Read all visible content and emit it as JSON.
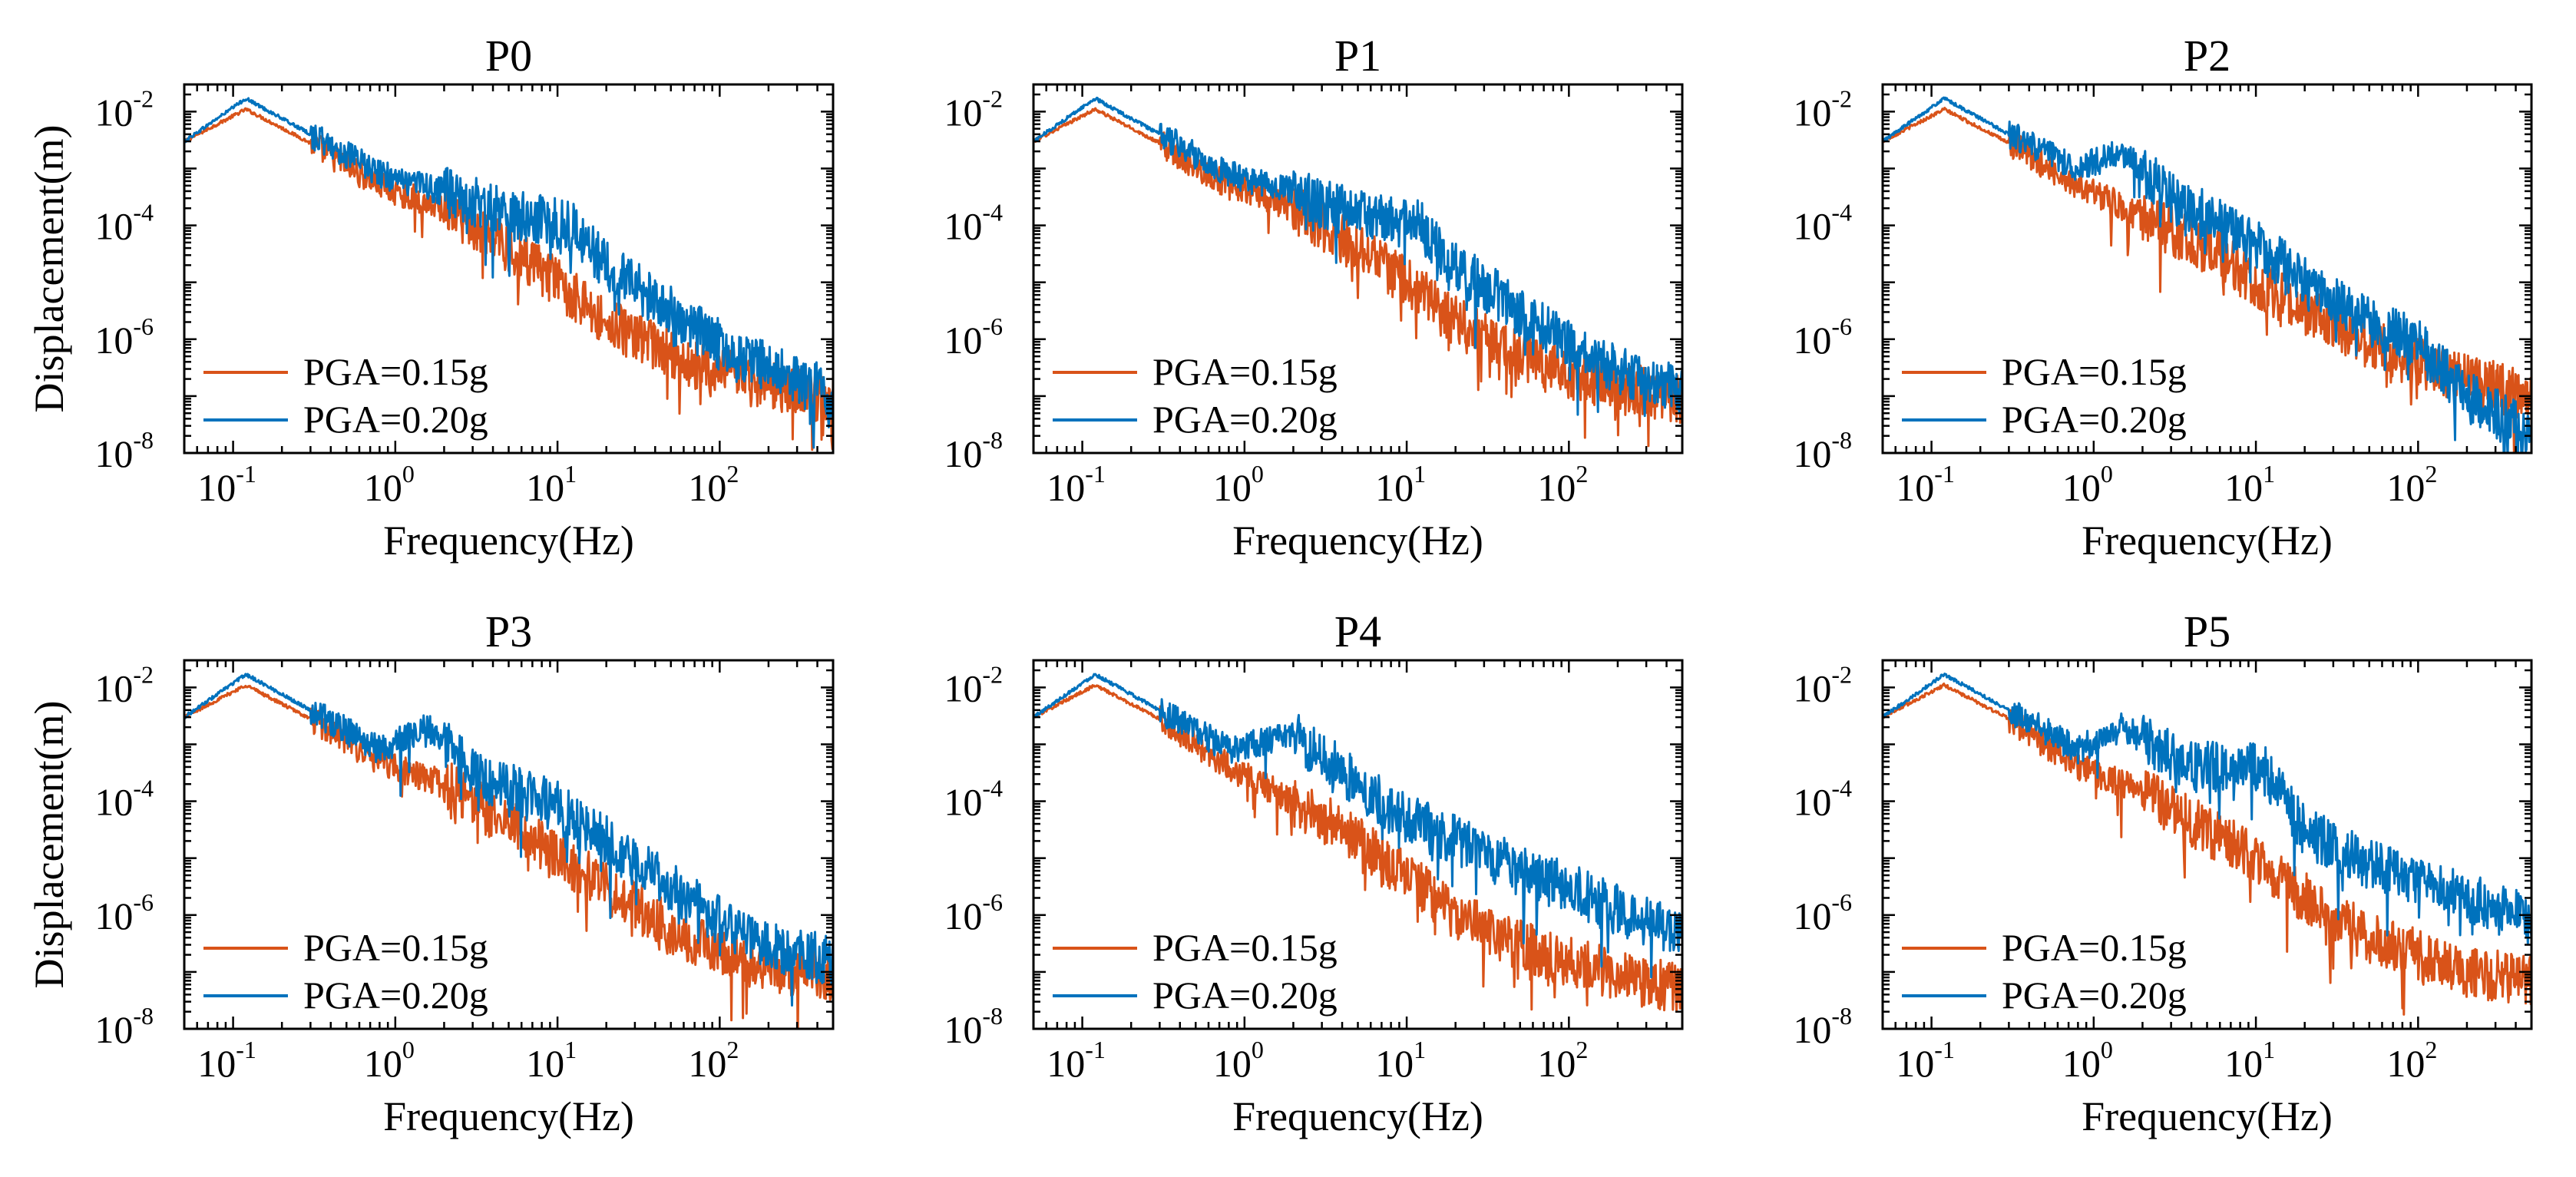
{
  "chart_data": [
    {
      "type": "line",
      "title": "P0",
      "xlabel": "Frequency(Hz)",
      "ylabel": "Displacement(m)",
      "xscale": "log",
      "yscale": "log",
      "xlim": [
        0.05,
        500
      ],
      "ylim": [
        1e-08,
        0.03
      ],
      "legend": "bottom-left",
      "xticks": [
        {
          "base": "10",
          "exp": "-1"
        },
        {
          "base": "10",
          "exp": "0"
        },
        {
          "base": "10",
          "exp": "1"
        },
        {
          "base": "10",
          "exp": "2"
        }
      ],
      "yticks": [
        {
          "base": "10",
          "exp": "-2"
        },
        {
          "base": "10",
          "exp": "-4"
        },
        {
          "base": "10",
          "exp": "-6"
        },
        {
          "base": "10",
          "exp": "-8"
        }
      ],
      "series": [
        {
          "name": "PGA=0.15g",
          "color": "#D95319",
          "profile": [
            [
              0.05,
              0.003
            ],
            [
              0.12,
              0.011
            ],
            [
              0.3,
              0.0028
            ],
            [
              0.8,
              0.0005
            ],
            [
              2,
              0.0002
            ],
            [
              5,
              4e-05
            ],
            [
              10,
              1e-05
            ],
            [
              20,
              2e-06
            ],
            [
              50,
              5e-07
            ],
            [
              100,
              2.5e-07
            ],
            [
              200,
              1.5e-07
            ],
            [
              500,
              9e-08
            ]
          ]
        },
        {
          "name": "PGA=0.20g",
          "color": "#0072BD",
          "profile": [
            [
              0.05,
              0.003
            ],
            [
              0.12,
              0.017
            ],
            [
              0.3,
              0.004
            ],
            [
              0.8,
              0.0008
            ],
            [
              2,
              0.0004
            ],
            [
              5,
              0.00015
            ],
            [
              12,
              0.0001
            ],
            [
              20,
              2e-05
            ],
            [
              50,
              3e-06
            ],
            [
              100,
              8e-07
            ],
            [
              200,
              3e-07
            ],
            [
              500,
              1.2e-07
            ]
          ]
        }
      ]
    },
    {
      "type": "line",
      "title": "P1",
      "xlabel": "Frequency(Hz)",
      "ylabel": "",
      "xscale": "log",
      "yscale": "log",
      "xlim": [
        0.05,
        500
      ],
      "ylim": [
        1e-08,
        0.03
      ],
      "legend": "bottom-left",
      "xticks": [
        {
          "base": "10",
          "exp": "-1"
        },
        {
          "base": "10",
          "exp": "0"
        },
        {
          "base": "10",
          "exp": "1"
        },
        {
          "base": "10",
          "exp": "2"
        }
      ],
      "yticks": [
        {
          "base": "10",
          "exp": "-2"
        },
        {
          "base": "10",
          "exp": "-4"
        },
        {
          "base": "10",
          "exp": "-6"
        },
        {
          "base": "10",
          "exp": "-8"
        }
      ],
      "series": [
        {
          "name": "PGA=0.15g",
          "color": "#D95319",
          "profile": [
            [
              0.05,
              0.003
            ],
            [
              0.12,
              0.011
            ],
            [
              0.3,
              0.0028
            ],
            [
              0.8,
              0.0005
            ],
            [
              2,
              0.0002
            ],
            [
              5,
              4e-05
            ],
            [
              10,
              1e-05
            ],
            [
              20,
              2e-06
            ],
            [
              50,
              5e-07
            ],
            [
              100,
              2.5e-07
            ],
            [
              200,
              1.5e-07
            ],
            [
              500,
              9e-08
            ]
          ]
        },
        {
          "name": "PGA=0.20g",
          "color": "#0072BD",
          "profile": [
            [
              0.05,
              0.003
            ],
            [
              0.12,
              0.017
            ],
            [
              0.3,
              0.004
            ],
            [
              0.8,
              0.0008
            ],
            [
              2,
              0.0004
            ],
            [
              5,
              0.00015
            ],
            [
              12,
              0.0001
            ],
            [
              20,
              2e-05
            ],
            [
              50,
              3e-06
            ],
            [
              100,
              8e-07
            ],
            [
              200,
              3e-07
            ],
            [
              500,
              1.2e-07
            ]
          ]
        }
      ]
    },
    {
      "type": "line",
      "title": "P2",
      "xlabel": "Frequency(Hz)",
      "ylabel": "",
      "xscale": "log",
      "yscale": "log",
      "xlim": [
        0.05,
        500
      ],
      "ylim": [
        1e-08,
        0.03
      ],
      "legend": "bottom-left",
      "xticks": [
        {
          "base": "10",
          "exp": "-1"
        },
        {
          "base": "10",
          "exp": "0"
        },
        {
          "base": "10",
          "exp": "1"
        },
        {
          "base": "10",
          "exp": "2"
        }
      ],
      "yticks": [
        {
          "base": "10",
          "exp": "-2"
        },
        {
          "base": "10",
          "exp": "-4"
        },
        {
          "base": "10",
          "exp": "-6"
        },
        {
          "base": "10",
          "exp": "-8"
        }
      ],
      "series": [
        {
          "name": "PGA=0.15g",
          "color": "#D95319",
          "profile": [
            [
              0.05,
              0.003
            ],
            [
              0.12,
              0.011
            ],
            [
              0.3,
              0.0028
            ],
            [
              0.8,
              0.0005
            ],
            [
              2,
              0.00015
            ],
            [
              5,
              4e-05
            ],
            [
              10,
              1e-05
            ],
            [
              20,
              3e-06
            ],
            [
              50,
              8e-07
            ],
            [
              100,
              4e-07
            ],
            [
              200,
              2e-07
            ],
            [
              500,
              1e-07
            ]
          ]
        },
        {
          "name": "PGA=0.20g",
          "color": "#0072BD",
          "profile": [
            [
              0.05,
              0.003
            ],
            [
              0.12,
              0.017
            ],
            [
              0.3,
              0.004
            ],
            [
              0.8,
              0.001
            ],
            [
              1.5,
              0.002
            ],
            [
              3,
              0.0003
            ],
            [
              10,
              5e-05
            ],
            [
              20,
              1e-05
            ],
            [
              50,
              2e-06
            ],
            [
              100,
              8e-07
            ],
            [
              200,
              1e-07
            ],
            [
              500,
              2e-08
            ]
          ]
        }
      ]
    },
    {
      "type": "line",
      "title": "P3",
      "xlabel": "Frequency(Hz)",
      "ylabel": "Displacement(m)",
      "xscale": "log",
      "yscale": "log",
      "xlim": [
        0.05,
        500
      ],
      "ylim": [
        1e-08,
        0.03
      ],
      "legend": "bottom-left",
      "xticks": [
        {
          "base": "10",
          "exp": "-1"
        },
        {
          "base": "10",
          "exp": "0"
        },
        {
          "base": "10",
          "exp": "1"
        },
        {
          "base": "10",
          "exp": "2"
        }
      ],
      "yticks": [
        {
          "base": "10",
          "exp": "-2"
        },
        {
          "base": "10",
          "exp": "-4"
        },
        {
          "base": "10",
          "exp": "-6"
        },
        {
          "base": "10",
          "exp": "-8"
        }
      ],
      "series": [
        {
          "name": "PGA=0.15g",
          "color": "#D95319",
          "profile": [
            [
              0.05,
              0.003
            ],
            [
              0.12,
              0.011
            ],
            [
              0.3,
              0.0028
            ],
            [
              0.8,
              0.0005
            ],
            [
              2,
              0.0002
            ],
            [
              5,
              4e-05
            ],
            [
              10,
              1e-05
            ],
            [
              20,
              3e-06
            ],
            [
              50,
              6e-07
            ],
            [
              100,
              2e-07
            ],
            [
              200,
              1.2e-07
            ],
            [
              500,
              9e-08
            ]
          ]
        },
        {
          "name": "PGA=0.20g",
          "color": "#0072BD",
          "profile": [
            [
              0.05,
              0.003
            ],
            [
              0.12,
              0.017
            ],
            [
              0.3,
              0.004
            ],
            [
              0.8,
              0.0008
            ],
            [
              1.6,
              0.002
            ],
            [
              3,
              0.0003
            ],
            [
              10,
              8e-05
            ],
            [
              20,
              2e-05
            ],
            [
              50,
              3e-06
            ],
            [
              100,
              8e-07
            ],
            [
              200,
              3e-07
            ],
            [
              500,
              1.5e-07
            ]
          ]
        }
      ]
    },
    {
      "type": "line",
      "title": "P4",
      "xlabel": "Frequency(Hz)",
      "ylabel": "",
      "xscale": "log",
      "yscale": "log",
      "xlim": [
        0.05,
        500
      ],
      "ylim": [
        1e-08,
        0.03
      ],
      "legend": "bottom-left",
      "xticks": [
        {
          "base": "10",
          "exp": "-1"
        },
        {
          "base": "10",
          "exp": "0"
        },
        {
          "base": "10",
          "exp": "1"
        },
        {
          "base": "10",
          "exp": "2"
        }
      ],
      "yticks": [
        {
          "base": "10",
          "exp": "-2"
        },
        {
          "base": "10",
          "exp": "-4"
        },
        {
          "base": "10",
          "exp": "-6"
        },
        {
          "base": "10",
          "exp": "-8"
        }
      ],
      "series": [
        {
          "name": "PGA=0.15g",
          "color": "#D95319",
          "profile": [
            [
              0.05,
              0.003
            ],
            [
              0.12,
              0.011
            ],
            [
              0.3,
              0.0028
            ],
            [
              0.8,
              0.0004
            ],
            [
              2,
              0.0001
            ],
            [
              5,
              2e-05
            ],
            [
              10,
              5e-06
            ],
            [
              20,
              1e-06
            ],
            [
              50,
              3e-07
            ],
            [
              100,
              1.5e-07
            ],
            [
              200,
              9e-08
            ],
            [
              500,
              5e-08
            ]
          ]
        },
        {
          "name": "PGA=0.20g",
          "color": "#0072BD",
          "profile": [
            [
              0.05,
              0.003
            ],
            [
              0.12,
              0.017
            ],
            [
              0.3,
              0.004
            ],
            [
              0.8,
              0.0008
            ],
            [
              2,
              0.0015
            ],
            [
              5,
              0.0002
            ],
            [
              10,
              5e-05
            ],
            [
              20,
              2e-05
            ],
            [
              50,
              6e-06
            ],
            [
              100,
              3e-06
            ],
            [
              200,
              1.2e-06
            ],
            [
              500,
              5e-07
            ]
          ]
        }
      ]
    },
    {
      "type": "line",
      "title": "P5",
      "xlabel": "Frequency(Hz)",
      "ylabel": "",
      "xscale": "log",
      "yscale": "log",
      "xlim": [
        0.05,
        500
      ],
      "ylim": [
        1e-08,
        0.03
      ],
      "legend": "bottom-left",
      "xticks": [
        {
          "base": "10",
          "exp": "-1"
        },
        {
          "base": "10",
          "exp": "0"
        },
        {
          "base": "10",
          "exp": "1"
        },
        {
          "base": "10",
          "exp": "2"
        }
      ],
      "yticks": [
        {
          "base": "10",
          "exp": "-2"
        },
        {
          "base": "10",
          "exp": "-4"
        },
        {
          "base": "10",
          "exp": "-6"
        },
        {
          "base": "10",
          "exp": "-8"
        }
      ],
      "series": [
        {
          "name": "PGA=0.15g",
          "color": "#D95319",
          "profile": [
            [
              0.05,
              0.003
            ],
            [
              0.12,
              0.011
            ],
            [
              0.3,
              0.0028
            ],
            [
              0.8,
              0.0004
            ],
            [
              2,
              0.00015
            ],
            [
              5,
              3e-05
            ],
            [
              10,
              1e-05
            ],
            [
              20,
              2e-06
            ],
            [
              50,
              4e-07
            ],
            [
              100,
              2e-07
            ],
            [
              200,
              1e-07
            ],
            [
              500,
              7e-08
            ]
          ]
        },
        {
          "name": "PGA=0.20g",
          "color": "#0072BD",
          "profile": [
            [
              0.05,
              0.003
            ],
            [
              0.12,
              0.017
            ],
            [
              0.3,
              0.004
            ],
            [
              0.8,
              0.0008
            ],
            [
              1.5,
              0.002
            ],
            [
              4,
              0.0004
            ],
            [
              11,
              0.0004
            ],
            [
              20,
              3e-05
            ],
            [
              50,
              8e-06
            ],
            [
              100,
              4e-06
            ],
            [
              200,
              2e-06
            ],
            [
              500,
              8e-07
            ]
          ]
        }
      ]
    }
  ]
}
